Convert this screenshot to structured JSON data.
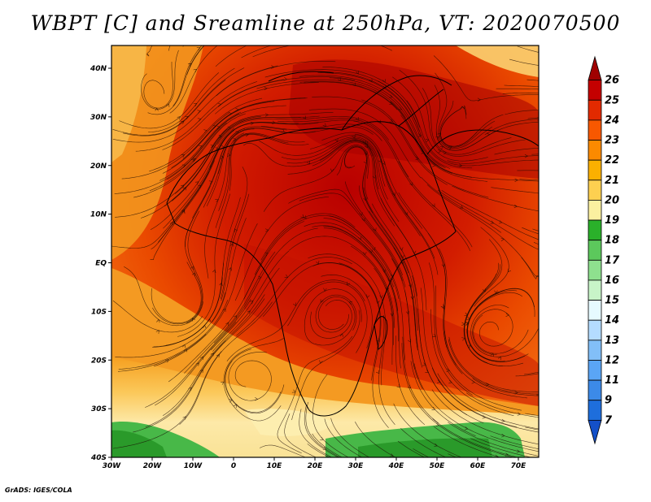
{
  "title": "WBPT [C] and Sreamline at 250hPa, VT: 2020070500",
  "credit": "GrADS: IGES/COLA",
  "map": {
    "lat_labels": [
      "40N",
      "30N",
      "20N",
      "10N",
      "EQ",
      "10S",
      "20S",
      "30S",
      "40S"
    ],
    "lon_labels": [
      "30W",
      "20W",
      "10W",
      "0",
      "10E",
      "20E",
      "30E",
      "40E",
      "50E",
      "60E",
      "70E"
    ]
  },
  "colorbar": {
    "labels": [
      "26",
      "25",
      "24",
      "23",
      "22",
      "21",
      "20",
      "19",
      "18",
      "17",
      "16",
      "15",
      "14",
      "13",
      "12",
      "11",
      "9",
      "7"
    ],
    "colors": [
      "#a00000",
      "#c40000",
      "#e22a00",
      "#f85800",
      "#fb8a00",
      "#fbb000",
      "#fdd050",
      "#fbf0a0",
      "#2ab02a",
      "#5cc85c",
      "#8ee08e",
      "#c8f4c8",
      "#e6faff",
      "#b4dcff",
      "#82bff8",
      "#5aa5f5",
      "#3c8ae8",
      "#1e6edc",
      "#1450c8"
    ]
  }
}
